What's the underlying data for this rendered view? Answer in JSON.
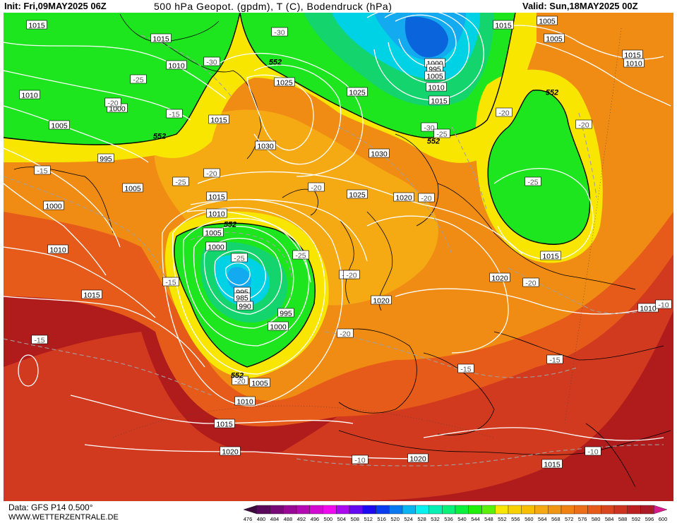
{
  "header": {
    "init": "Init: Fri,09MAY2025 06Z",
    "title": "500 hPa Geopot. (gpdm), T (C), Bodendruck (hPa)",
    "valid": "Valid: Sun,18MAY2025 00Z"
  },
  "footer": {
    "data_source": "Data: GFS P14 0.500°",
    "site": "WWW.WETTERZENTRALE.DE"
  },
  "colors": {
    "dark_red": "#b01c1c",
    "red": "#d23a20",
    "red_orange": "#e65a1a",
    "orange": "#f08c14",
    "orange_yellow": "#f5aa14",
    "yellow": "#f8e600",
    "green": "#1ee61e",
    "green_teal": "#14d46e",
    "cyan": "#00d2e6",
    "light_blue": "#14aaf0",
    "blue": "#0a64dc",
    "isobar": "#ffffff",
    "isotherm": "#a0a0a0",
    "coastline": "#000000"
  },
  "isobar_labels": [
    "1015",
    "1015",
    "1010",
    "1010",
    "1005",
    "1000",
    "995",
    "1005",
    "1000",
    "1010",
    "1015",
    "1025",
    "1015",
    "1030",
    "1025",
    "1030",
    "1025",
    "1020",
    "1015",
    "1010",
    "1005",
    "1000",
    "995",
    "990",
    "985",
    "995",
    "1000",
    "1005",
    "1010",
    "1015",
    "1020",
    "1020",
    "1020",
    "1020",
    "1015",
    "1015",
    "1010",
    "1005",
    "1010",
    "1015",
    "1015",
    "1005",
    "1000",
    "995",
    "1005",
    "1010",
    "1015"
  ],
  "isotherm_labels": [
    "-30",
    "-30",
    "-25",
    "-20",
    "-15",
    "-15",
    "-20",
    "-25",
    "-20",
    "-20",
    "-25",
    "-25",
    "-20",
    "-15",
    "-20",
    "-20",
    "-30",
    "-25",
    "-20",
    "-25",
    "-20",
    "-20",
    "-15",
    "-15",
    "-15",
    "-10",
    "-10",
    "-10",
    "-20"
  ],
  "geopotential_labels": [
    "552",
    "552",
    "552",
    "552",
    "552",
    "552"
  ],
  "colorbar": {
    "values": [
      476,
      480,
      484,
      488,
      492,
      496,
      500,
      504,
      508,
      512,
      516,
      520,
      524,
      528,
      532,
      536,
      540,
      544,
      548,
      552,
      556,
      560,
      564,
      568,
      572,
      576,
      580,
      584,
      588,
      592,
      596,
      600
    ],
    "colors": [
      "#3c0a3c",
      "#5a0a5a",
      "#780a78",
      "#960a96",
      "#b40ab4",
      "#d20ad2",
      "#f00af0",
      "#aa0af0",
      "#640af0",
      "#1e0af0",
      "#0a3cf0",
      "#0a78f0",
      "#0ab4f0",
      "#0af0f0",
      "#0af0b4",
      "#0af078",
      "#0af03c",
      "#1ef00a",
      "#5af00a",
      "#f8e600",
      "#f8d200",
      "#f8be00",
      "#f5aa14",
      "#f09614",
      "#f08214",
      "#ec6e18",
      "#e65a1a",
      "#d84620",
      "#cc3320",
      "#bb2020",
      "#aa1a28",
      "#d81a8c"
    ]
  }
}
